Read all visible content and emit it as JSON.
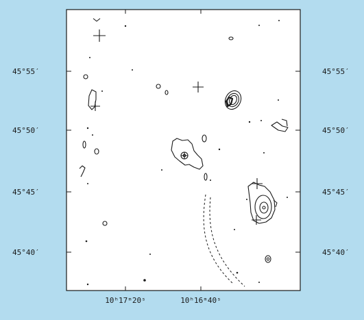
{
  "figure": {
    "colors": {
      "frame_background": "#b3dcef",
      "plot_background": "#ffffff",
      "ink": "#1a1a1a"
    },
    "left_tick_labels": [
      "45°55′",
      "45°50′",
      "45°45′",
      "45°40′"
    ],
    "right_tick_labels": [
      "45°55′",
      "45°50′",
      "45°45′",
      "45°40′"
    ],
    "bottom_tick_labels": [
      "10ʰ17ᵐ20ˢ",
      "10ʰ16ᵐ40ˢ"
    ]
  },
  "chart_data": {
    "type": "contour-map",
    "y_axis": {
      "ticks": [
        "45°55′",
        "45°50′",
        "45°45′",
        "45°40′"
      ]
    },
    "x_axis": {
      "ticks": [
        "10ʰ17ᵐ20ˢ",
        "10ʰ16ᵐ40ˢ"
      ]
    },
    "markers": [
      "cross",
      "cross",
      "cross",
      "cross",
      "cross",
      "cross"
    ]
  }
}
